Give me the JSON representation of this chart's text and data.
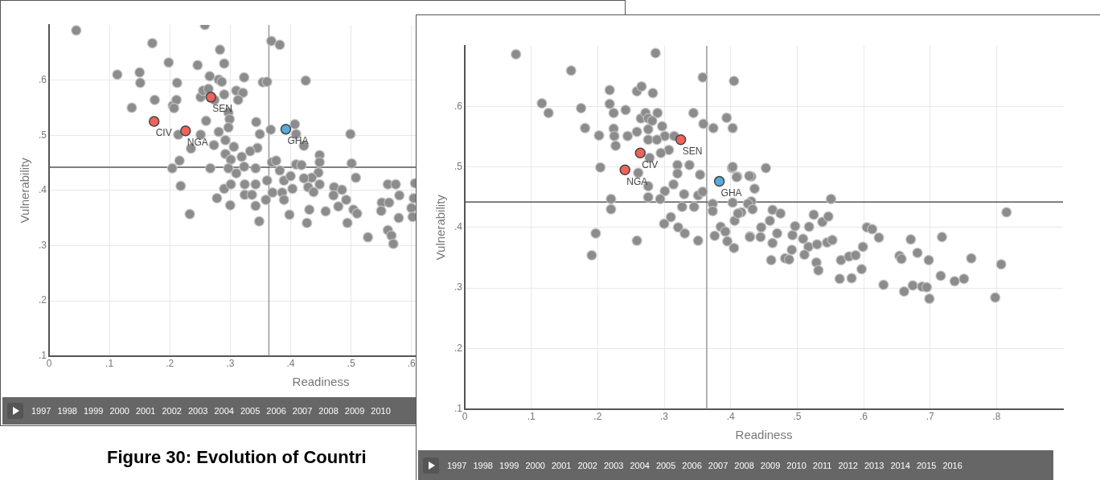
{
  "chart_data": [
    {
      "type": "scatter",
      "title": "Figure 30: Evolution of Countri",
      "xlabel": "Readiness",
      "ylabel": "Vulnerability",
      "xlim": [
        0,
        0.9
      ],
      "ylim": [
        0.1,
        0.7
      ],
      "xticks": [
        0,
        {
          "value": 0.1,
          "label": ".1"
        },
        {
          "value": 0.2,
          "label": ".2"
        },
        {
          "value": 0.3,
          "label": ".3"
        },
        {
          "value": 0.4,
          "label": ".4"
        },
        {
          "value": 0.5,
          "label": ".5"
        },
        {
          "value": 0.6,
          "label": ".6"
        }
      ],
      "yticks": [
        {
          "value": 0.1,
          "label": ".1"
        },
        {
          "value": 0.2,
          "label": ".2"
        },
        {
          "value": 0.3,
          "label": ".3"
        },
        {
          "value": 0.4,
          "label": ".4"
        },
        {
          "value": 0.5,
          "label": ".5"
        },
        {
          "value": 0.6,
          "label": ".6"
        }
      ],
      "grid": true,
      "legend": false,
      "marker": "circle",
      "ref_lines": [
        {
          "axis": "x",
          "value": 0.364,
          "color": "#999999"
        },
        {
          "axis": "y",
          "value": 0.442,
          "color": "#555555"
        }
      ],
      "series": [
        {
          "color": "#8c8c8c",
          "x": [
            0.045,
            0.258,
            0.171,
            0.198,
            0.246,
            0.283,
            0.29,
            0.113,
            0.15,
            0.151,
            0.212,
            0.266,
            0.281,
            0.286,
            0.323,
            0.354,
            0.361,
            0.368,
            0.382,
            0.425,
            0.137,
            0.175,
            0.205,
            0.211,
            0.207,
            0.251,
            0.255,
            0.264,
            0.274,
            0.29,
            0.31,
            0.321,
            0.313,
            0.297,
            0.299,
            0.297,
            0.26,
            0.251,
            0.281,
            0.292,
            0.273,
            0.235,
            0.214,
            0.343,
            0.349,
            0.367,
            0.345,
            0.333,
            0.306,
            0.292,
            0.301,
            0.319,
            0.407,
            0.409,
            0.422,
            0.499,
            0.448,
            0.448,
            0.501,
            0.508,
            0.216,
            0.204,
            0.267,
            0.297,
            0.323,
            0.342,
            0.218,
            0.369,
            0.376,
            0.382,
            0.409,
            0.418,
            0.446,
            0.435,
            0.422,
            0.361,
            0.389,
            0.4,
            0.31,
            0.324,
            0.29,
            0.301,
            0.342,
            0.429,
            0.448,
            0.438,
            0.472,
            0.471,
            0.485,
            0.492,
            0.479,
            0.37,
            0.359,
            0.386,
            0.389,
            0.403,
            0.324,
            0.336,
            0.278,
            0.3,
            0.342,
            0.431,
            0.458,
            0.398,
            0.233,
            0.348,
            0.427,
            0.494,
            0.504,
            0.51,
            0.528,
            0.561,
            0.574,
            0.551,
            0.563,
            0.55,
            0.58,
            0.579,
            0.561,
            0.567,
            0.57,
            0.6,
            0.602,
            0.604,
            0.606
          ],
          "values": [
            0.69,
            0.7,
            0.667,
            0.632,
            0.627,
            0.655,
            0.63,
            0.61,
            0.614,
            0.595,
            0.595,
            0.607,
            0.601,
            0.597,
            0.605,
            0.596,
            0.597,
            0.671,
            0.664,
            0.599,
            0.55,
            0.564,
            0.554,
            0.564,
            0.549,
            0.569,
            0.581,
            0.584,
            0.564,
            0.574,
            0.581,
            0.577,
            0.564,
            0.541,
            0.529,
            0.514,
            0.526,
            0.501,
            0.506,
            0.491,
            0.482,
            0.476,
            0.501,
            0.524,
            0.502,
            0.51,
            0.477,
            0.471,
            0.479,
            0.466,
            0.456,
            0.461,
            0.52,
            0.502,
            0.481,
            0.502,
            0.464,
            0.451,
            0.449,
            0.423,
            0.454,
            0.44,
            0.44,
            0.44,
            0.443,
            0.44,
            0.408,
            0.451,
            0.454,
            0.436,
            0.447,
            0.446,
            0.432,
            0.423,
            0.422,
            0.418,
            0.418,
            0.426,
            0.431,
            0.411,
            0.403,
            0.411,
            0.411,
            0.406,
            0.411,
            0.397,
            0.406,
            0.391,
            0.401,
            0.383,
            0.371,
            0.396,
            0.383,
            0.396,
            0.383,
            0.403,
            0.392,
            0.392,
            0.386,
            0.373,
            0.372,
            0.365,
            0.362,
            0.356,
            0.357,
            0.344,
            0.341,
            0.341,
            0.365,
            0.358,
            0.315,
            0.411,
            0.411,
            0.378,
            0.378,
            0.363,
            0.391,
            0.35,
            0.328,
            0.318,
            0.303,
            0.368,
            0.352,
            0.386,
            0.413
          ]
        },
        {
          "color": "#f0625a",
          "x": [
            0.174,
            0.226,
            0.268
          ],
          "values": [
            0.525,
            0.508,
            0.569
          ]
        },
        {
          "color": "#5aa9dc",
          "x": [
            0.392
          ],
          "values": [
            0.511
          ]
        }
      ],
      "annotations": [
        {
          "text": "CIV",
          "x": 0.174,
          "y": 0.525
        },
        {
          "text": "NGA",
          "x": 0.226,
          "y": 0.508
        },
        {
          "text": "SEN",
          "x": 0.268,
          "y": 0.569
        },
        {
          "text": "GHA",
          "x": 0.392,
          "y": 0.511
        },
        "1997",
        "1998",
        "1999",
        "2000",
        "2001",
        "2002",
        "2003",
        "2004",
        "2005",
        "2006",
        "2007",
        "2008",
        "2009",
        "2010"
      ]
    },
    {
      "type": "scatter",
      "xlabel": "Readiness",
      "ylabel": "Vulnerability",
      "xlim": [
        0,
        0.9
      ],
      "ylim": [
        0.1,
        0.7
      ],
      "xticks": [
        0,
        {
          "value": 0.1,
          "label": ".1"
        },
        {
          "value": 0.2,
          "label": ".2"
        },
        {
          "value": 0.3,
          "label": ".3"
        },
        {
          "value": 0.4,
          "label": ".4"
        },
        {
          "value": 0.5,
          "label": ".5"
        },
        {
          "value": 0.6,
          "label": ".6"
        },
        {
          "value": 0.7,
          "label": ".7"
        },
        {
          "value": 0.8,
          "label": ".8"
        }
      ],
      "yticks": [
        {
          "value": 0.1,
          "label": ".1"
        },
        {
          "value": 0.2,
          "label": ".2"
        },
        {
          "value": 0.3,
          "label": ".3"
        },
        {
          "value": 0.4,
          "label": ".4"
        },
        {
          "value": 0.5,
          "label": ".5"
        },
        {
          "value": 0.6,
          "label": ".6"
        }
      ],
      "grid": true,
      "legend": false,
      "marker": "circle",
      "ref_lines": [
        {
          "axis": "x",
          "value": 0.364,
          "color": "#999999"
        },
        {
          "axis": "y",
          "value": 0.442,
          "color": "#555555"
        }
      ],
      "series": [
        {
          "color": "#8c8c8c",
          "x": [
            0.077,
            0.287,
            0.16,
            0.358,
            0.405,
            0.218,
            0.259,
            0.266,
            0.283,
            0.116,
            0.126,
            0.175,
            0.218,
            0.224,
            0.242,
            0.344,
            0.394,
            0.403,
            0.374,
            0.359,
            0.181,
            0.202,
            0.224,
            0.225,
            0.227,
            0.245,
            0.259,
            0.265,
            0.272,
            0.276,
            0.29,
            0.282,
            0.276,
            0.297,
            0.301,
            0.276,
            0.289,
            0.315,
            0.307,
            0.295,
            0.278,
            0.261,
            0.204,
            0.32,
            0.32,
            0.338,
            0.354,
            0.314,
            0.301,
            0.276,
            0.276,
            0.294,
            0.33,
            0.351,
            0.358,
            0.22,
            0.22,
            0.327,
            0.345,
            0.373,
            0.373,
            0.3,
            0.31,
            0.321,
            0.331,
            0.197,
            0.191,
            0.259,
            0.351,
            0.376,
            0.385,
            0.395,
            0.405,
            0.402,
            0.41,
            0.403,
            0.406,
            0.431,
            0.429,
            0.416,
            0.431,
            0.403,
            0.409,
            0.428,
            0.436,
            0.453,
            0.426,
            0.433,
            0.411,
            0.392,
            0.429,
            0.445,
            0.446,
            0.463,
            0.475,
            0.459,
            0.47,
            0.463,
            0.461,
            0.482,
            0.488,
            0.492,
            0.493,
            0.497,
            0.509,
            0.518,
            0.517,
            0.511,
            0.525,
            0.538,
            0.547,
            0.551,
            0.53,
            0.545,
            0.553,
            0.529,
            0.532,
            0.566,
            0.578,
            0.588,
            0.564,
            0.582,
            0.597,
            0.599,
            0.605,
            0.613,
            0.623,
            0.63,
            0.654,
            0.657,
            0.671,
            0.681,
            0.698,
            0.661,
            0.674,
            0.688,
            0.695,
            0.699,
            0.718,
            0.716,
            0.737,
            0.751,
            0.762,
            0.798,
            0.807,
            0.815
          ],
          "values": [
            0.686,
            0.688,
            0.659,
            0.648,
            0.642,
            0.627,
            0.625,
            0.633,
            0.622,
            0.605,
            0.589,
            0.597,
            0.604,
            0.589,
            0.594,
            0.589,
            0.581,
            0.564,
            0.564,
            0.571,
            0.564,
            0.552,
            0.563,
            0.551,
            0.535,
            0.551,
            0.558,
            0.58,
            0.589,
            0.58,
            0.589,
            0.576,
            0.562,
            0.567,
            0.551,
            0.545,
            0.545,
            0.551,
            0.528,
            0.523,
            0.515,
            0.49,
            0.499,
            0.503,
            0.489,
            0.503,
            0.487,
            0.471,
            0.46,
            0.468,
            0.45,
            0.447,
            0.455,
            0.453,
            0.459,
            0.447,
            0.43,
            0.434,
            0.434,
            0.439,
            0.427,
            0.406,
            0.417,
            0.4,
            0.39,
            0.39,
            0.354,
            0.378,
            0.378,
            0.386,
            0.401,
            0.377,
            0.366,
            0.498,
            0.484,
            0.441,
            0.411,
            0.484,
            0.385,
            0.425,
            0.443,
            0.5,
            0.483,
            0.485,
            0.464,
            0.498,
            0.439,
            0.43,
            0.423,
            0.393,
            0.384,
            0.384,
            0.4,
            0.429,
            0.423,
            0.411,
            0.39,
            0.374,
            0.346,
            0.349,
            0.347,
            0.363,
            0.387,
            0.402,
            0.381,
            0.401,
            0.368,
            0.355,
            0.421,
            0.409,
            0.418,
            0.447,
            0.372,
            0.375,
            0.379,
            0.342,
            0.329,
            0.346,
            0.352,
            0.354,
            0.315,
            0.316,
            0.331,
            0.368,
            0.4,
            0.397,
            0.383,
            0.305,
            0.353,
            0.348,
            0.38,
            0.358,
            0.346,
            0.294,
            0.304,
            0.302,
            0.301,
            0.282,
            0.384,
            0.32,
            0.311,
            0.315,
            0.349,
            0.284,
            0.339,
            0.425
          ]
        },
        {
          "color": "#f0625a",
          "x": [
            0.241,
            0.264,
            0.325
          ],
          "values": [
            0.495,
            0.523,
            0.545
          ]
        },
        {
          "color": "#5aa9dc",
          "x": [
            0.383
          ],
          "values": [
            0.476
          ]
        }
      ],
      "annotations": [
        {
          "text": "NGA",
          "x": 0.241,
          "y": 0.495
        },
        {
          "text": "CIV",
          "x": 0.264,
          "y": 0.523
        },
        {
          "text": "SEN",
          "x": 0.325,
          "y": 0.545
        },
        {
          "text": "GHA",
          "x": 0.383,
          "y": 0.476
        },
        "1997",
        "1998",
        "1999",
        "2000",
        "2001",
        "2002",
        "2003",
        "2004",
        "2005",
        "2006",
        "2007",
        "2008",
        "2009",
        "2010",
        "2011",
        "2012",
        "2013",
        "2014",
        "2015",
        "2016"
      ]
    }
  ]
}
